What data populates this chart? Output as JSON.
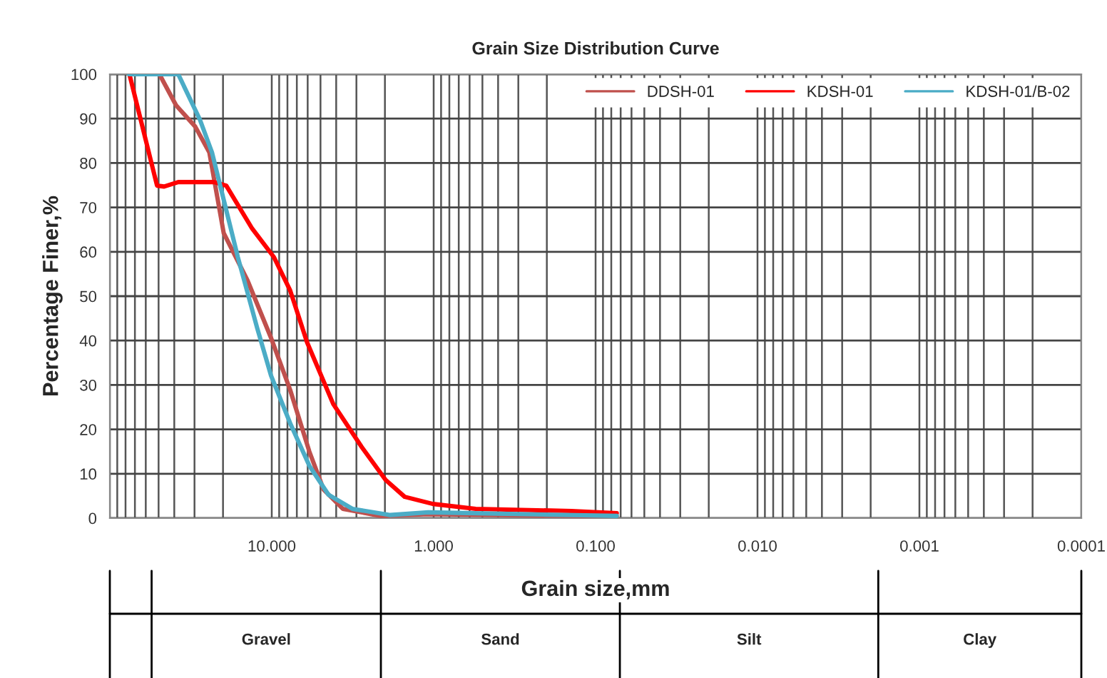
{
  "chart_data": {
    "type": "line",
    "title": "Grain Size Distribution Curve",
    "xlabel": "Grain size,mm",
    "ylabel": "Percentage Finer,%",
    "log": "x",
    "grid": true,
    "legend": "top right",
    "line_style": "solid",
    "marker": "none",
    "xlim": [
      100,
      0.0001
    ],
    "xticks": [
      {
        "value": 100,
        "label": null
      },
      {
        "value": 10,
        "label": "10.000"
      },
      {
        "value": 1,
        "label": "1.000"
      },
      {
        "value": 0.1,
        "label": "0.100"
      },
      {
        "value": 0.01,
        "label": "0.010"
      },
      {
        "value": 0.001,
        "label": "0.001"
      },
      {
        "value": 0.0001,
        "label": "0.0001"
      }
    ],
    "ylim": [
      0,
      100
    ],
    "yticks": [
      0,
      10,
      20,
      30,
      40,
      50,
      60,
      70,
      80,
      90,
      100
    ],
    "series": [
      {
        "name": "DDSH-01",
        "color": "#c0504d",
        "x": [
          55,
          49.4,
          39,
          29.7,
          24.3,
          19.8,
          14.1,
          10.1,
          7.7,
          5.86,
          4.78,
          3.64,
          2.12,
          1.08,
          0.074
        ],
        "values": [
          100,
          100,
          93,
          88.2,
          82.4,
          64.2,
          53.5,
          40.6,
          28.9,
          15.0,
          6.4,
          2.1,
          0.5,
          0.9,
          0.4
        ]
      },
      {
        "name": "KDSH-01",
        "color": "#ff0000",
        "x": [
          75.7,
          51.1,
          46.2,
          37.8,
          22.7,
          19.1,
          13.2,
          9.7,
          7.7,
          6.05,
          4.17,
          2.78,
          1.98,
          1.51,
          1.01,
          0.55,
          0.141,
          0.074
        ],
        "values": [
          100,
          74.9,
          74.7,
          75.7,
          75.7,
          74.9,
          65.2,
          58.8,
          51.3,
          39.6,
          25.7,
          16.0,
          8.6,
          4.8,
          3.2,
          2.1,
          1.6,
          1.1
        ]
      },
      {
        "name": "KDSH-01/B-02",
        "color": "#4bacc6",
        "x": [
          76.2,
          37.8,
          27.8,
          23.4,
          19.8,
          16.2,
          12.3,
          10.1,
          7.7,
          5.86,
          4.47,
          3.18,
          1.85,
          1.08,
          0.074
        ],
        "values": [
          100,
          100,
          89.8,
          82.4,
          71.7,
          58.8,
          42.8,
          32.1,
          21.4,
          11.8,
          5.3,
          2.1,
          0.7,
          1.3,
          0.5
        ]
      }
    ],
    "annotations": [
      "Gravel",
      "Sand",
      "Silt",
      "Clay"
    ]
  }
}
